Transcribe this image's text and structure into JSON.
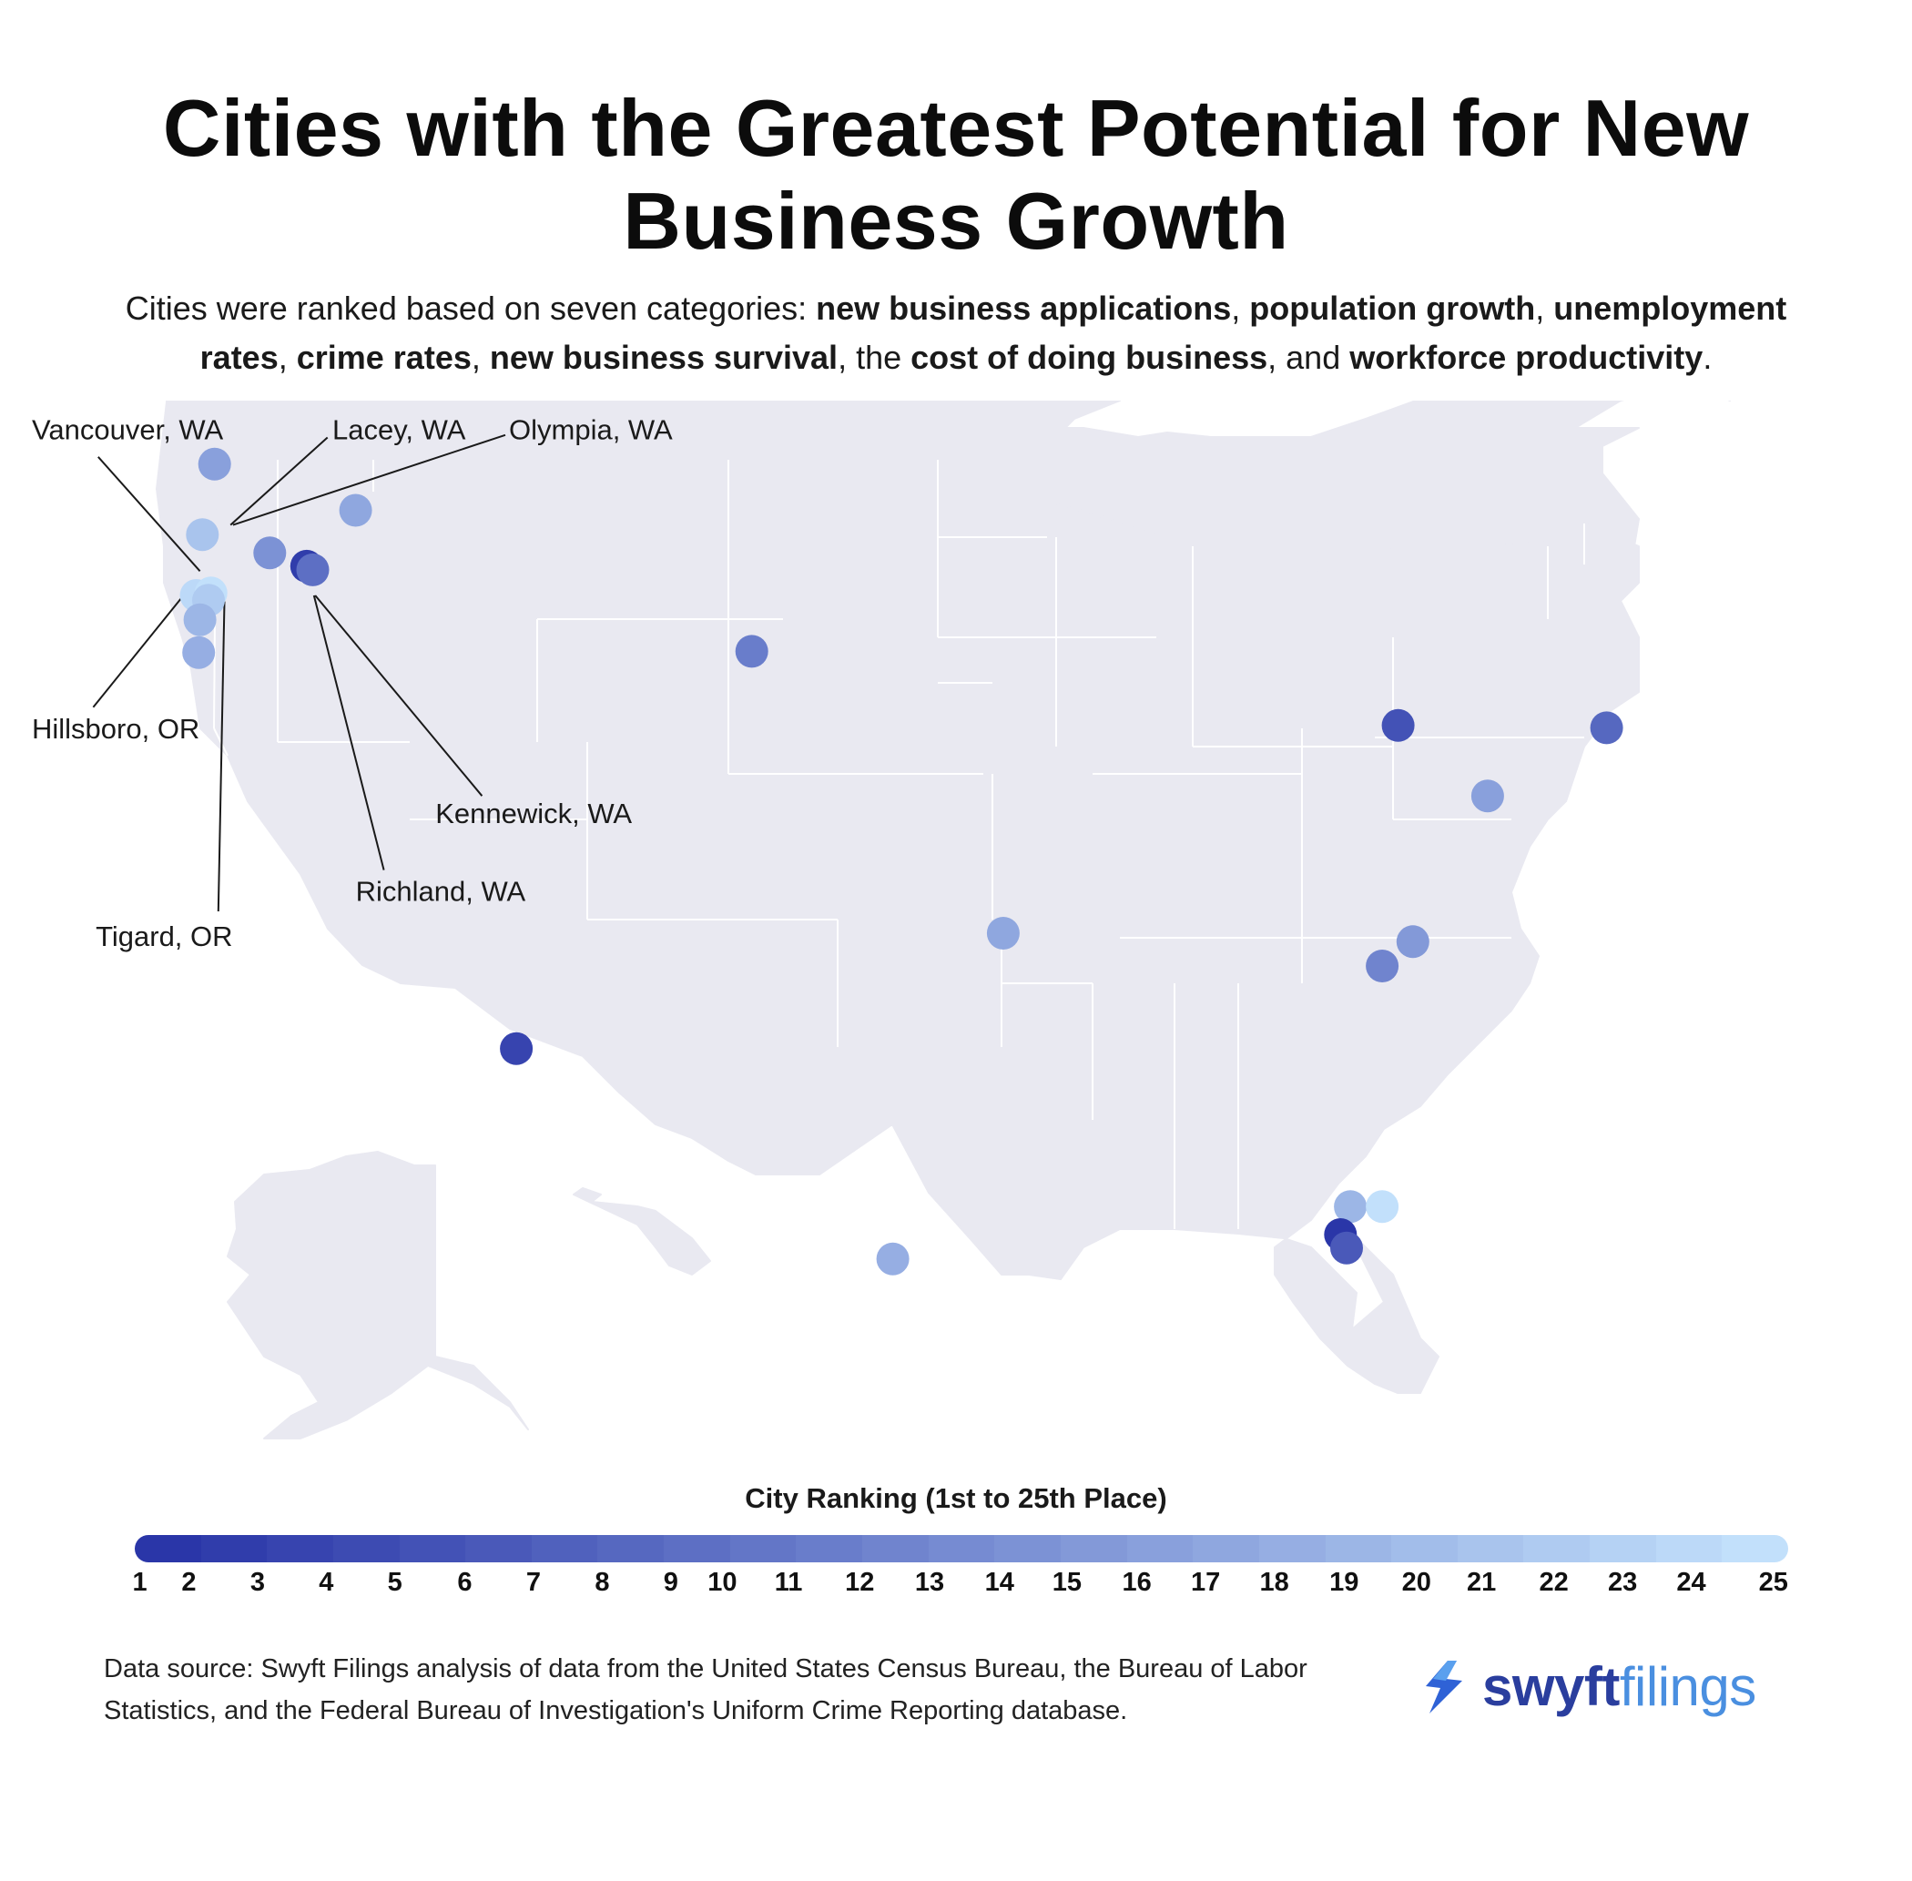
{
  "title": "Cities with the Greatest Potential for New Business Growth",
  "subtitle": {
    "parts": [
      {
        "t": "Cities were ranked based on seven categories: ",
        "b": false
      },
      {
        "t": "new business applications",
        "b": true
      },
      {
        "t": ", ",
        "b": false
      },
      {
        "t": "population growth",
        "b": true
      },
      {
        "t": ", ",
        "b": false
      },
      {
        "t": "unemployment rates",
        "b": true
      },
      {
        "t": ", ",
        "b": false
      },
      {
        "t": "crime rates",
        "b": true
      },
      {
        "t": ", ",
        "b": false
      },
      {
        "t": "new business survival",
        "b": true
      },
      {
        "t": ", the ",
        "b": false
      },
      {
        "t": "cost of doing business",
        "b": true
      },
      {
        "t": ", and ",
        "b": false
      },
      {
        "t": "workforce productivity",
        "b": true
      },
      {
        "t": ".",
        "b": false
      }
    ]
  },
  "map": {
    "land_color": "#e9e9f1",
    "border_color": "#ffffff",
    "callouts": [
      "Vancouver, WA",
      "Lacey, WA",
      "Olympia, WA",
      "Hillsboro, OR",
      "Kennewick, WA",
      "Richland, WA",
      "Tigard, OR"
    ],
    "color_scale": {
      "rank_1": "#2a36a8",
      "rank_25": "#c2e0fb"
    }
  },
  "legend": {
    "title": "City Ranking (1st to 25th Place)",
    "ticks": [
      "1",
      "2",
      "3",
      "4",
      "5",
      "6",
      "7",
      "8",
      "9",
      "10",
      "11",
      "12",
      "13",
      "14",
      "15",
      "16",
      "17",
      "18",
      "19",
      "20",
      "21",
      "22",
      "23",
      "24",
      "25"
    ]
  },
  "source": "Data source: Swyft Filings analysis of data from the United States Census Bureau, the Bureau of Labor Statistics, and the Federal Bureau of Investigation's Uniform Crime Reporting database.",
  "brand": {
    "part1": "swyft",
    "part2": "filings",
    "icon": "swyft-bolt-icon"
  }
}
